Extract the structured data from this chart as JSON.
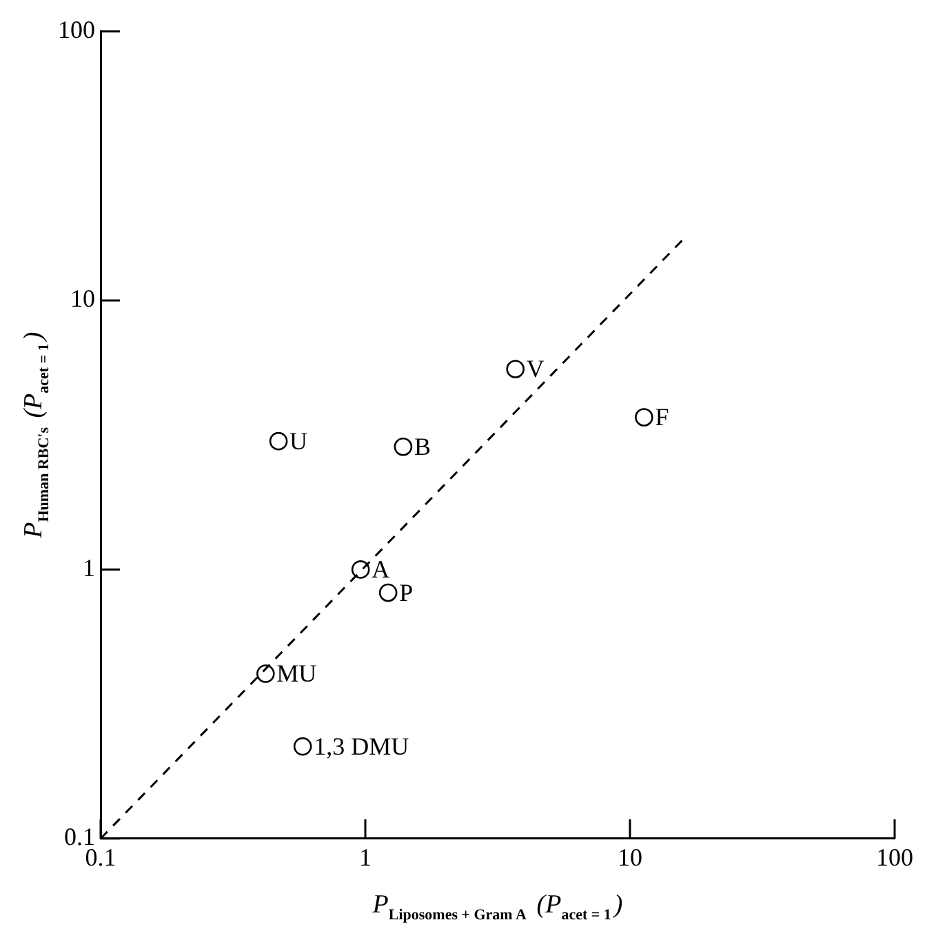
{
  "chart_data": {
    "type": "scatter",
    "xlabel": "P$_{Liposomes + Gram A}$ (P$_{acet = 1}$)",
    "ylabel": "P$_{Human RBC's}$ (P$_{acet = 1}$)",
    "series": [
      {
        "color": "#000000",
        "x": [
          3.69,
          11.3,
          0.47,
          1.39,
          0.96,
          1.22,
          0.42,
          0.58
        ],
        "values": [
          5.56,
          3.68,
          3.0,
          2.86,
          1.0,
          0.82,
          0.41,
          0.22
        ]
      },
      {
        "type": "line",
        "color": "#000000",
        "line_style": "dashed",
        "marker": "none",
        "x": [
          0.1,
          16
        ],
        "values": [
          0.1,
          17
        ]
      }
    ],
    "annotations": [
      {
        "text": "V",
        "x": 3.69,
        "y": 5.56
      },
      {
        "text": "F",
        "x": 11.3,
        "y": 3.68
      },
      {
        "text": "U",
        "x": 0.47,
        "y": 3.0
      },
      {
        "text": "B",
        "x": 1.39,
        "y": 2.86
      },
      {
        "text": "A",
        "x": 0.96,
        "y": 1.0
      },
      {
        "text": "P",
        "x": 1.22,
        "y": 0.82
      },
      {
        "text": "MU",
        "x": 0.42,
        "y": 0.41
      },
      {
        "text": "1,3 DMU",
        "x": 0.58,
        "y": 0.22
      }
    ],
    "log": "xy",
    "marker": "circle",
    "grid": false,
    "legend": false,
    "xlim": [
      0.1,
      100
    ],
    "ylim": [
      0.1,
      100
    ],
    "xticks": [
      0.1,
      1,
      10,
      100
    ],
    "yticks": [
      0.1,
      1,
      10,
      100
    ]
  }
}
